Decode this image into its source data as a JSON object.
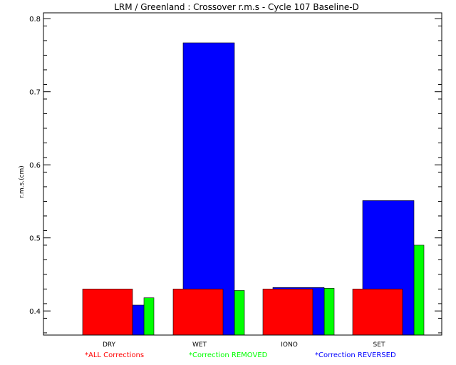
{
  "chart_data": {
    "type": "bar",
    "title": "LRM / Greenland : Crossover r.m.s - Cycle 107 Baseline-D",
    "ylabel": "r.m.s.(cm)",
    "xlabel": "",
    "ylim": [
      0.367,
      0.808
    ],
    "yticks": [
      0.4,
      0.5,
      0.6,
      0.7,
      0.8
    ],
    "categories": [
      "DRY",
      "WET",
      "IONO",
      "SET"
    ],
    "series": [
      {
        "name": "*ALL Corrections",
        "color": "#ff0000",
        "values": [
          0.43,
          0.43,
          0.43,
          0.43
        ]
      },
      {
        "name": "*Correction REMOVED",
        "color": "#00ff00",
        "values": [
          0.418,
          0.428,
          0.431,
          0.49
        ]
      },
      {
        "name": "*Correction REVERSED",
        "color": "#0000ff",
        "values": [
          0.408,
          0.767,
          0.432,
          0.551
        ]
      }
    ],
    "grid": false,
    "legend_position": "bottom"
  }
}
